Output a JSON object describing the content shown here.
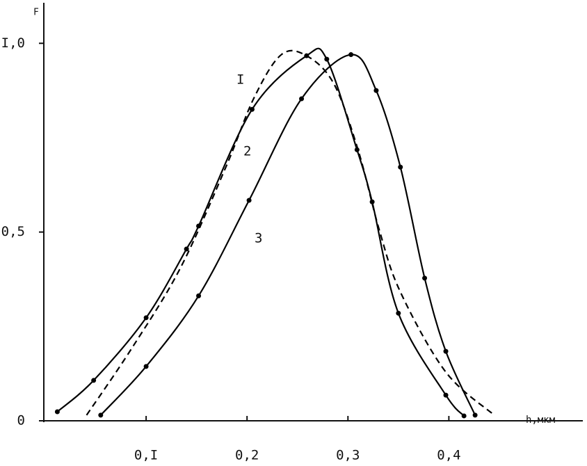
{
  "chart_data": {
    "type": "line",
    "y_label": "F",
    "x_label": "h,мкм",
    "xlim": [
      0,
      0.53
    ],
    "ylim": [
      0,
      1.1
    ],
    "xticks": [
      {
        "value": 0.1,
        "label": "0,I"
      },
      {
        "value": 0.2,
        "label": "0,2"
      },
      {
        "value": 0.3,
        "label": "0,3"
      },
      {
        "value": 0.4,
        "label": "0,4"
      }
    ],
    "yticks": [
      {
        "value": 0,
        "label": "0"
      },
      {
        "value": 0.5,
        "label": "0,5"
      },
      {
        "value": 1.0,
        "label": ".I,0"
      }
    ],
    "series": [
      {
        "name": "I",
        "color": "#000000",
        "dashed": true,
        "markers": false,
        "x": [
          0.041,
          0.086,
          0.134,
          0.179,
          0.207,
          0.234,
          0.259,
          0.286,
          0.31,
          0.331,
          0.352,
          0.397,
          0.445
        ],
        "values": [
          0.015,
          0.193,
          0.405,
          0.672,
          0.856,
          0.97,
          0.967,
          0.893,
          0.718,
          0.506,
          0.341,
          0.129,
          0.015
        ]
      },
      {
        "name": "2",
        "color": "#000000",
        "dashed": false,
        "markers": true,
        "x": [
          0.012,
          0.048,
          0.1,
          0.14,
          0.152,
          0.205,
          0.259,
          0.279,
          0.309,
          0.324,
          0.35,
          0.397,
          0.415
        ],
        "values": [
          0.024,
          0.107,
          0.273,
          0.455,
          0.516,
          0.825,
          0.967,
          0.958,
          0.718,
          0.58,
          0.285,
          0.068,
          0.013
        ]
      },
      {
        "name": "3",
        "color": "#000000",
        "dashed": false,
        "markers": true,
        "x": [
          0.055,
          0.1,
          0.152,
          0.202,
          0.254,
          0.303,
          0.328,
          0.352,
          0.376,
          0.397,
          0.426
        ],
        "values": [
          0.015,
          0.144,
          0.331,
          0.584,
          0.853,
          0.97,
          0.875,
          0.672,
          0.378,
          0.184,
          0.015
        ]
      }
    ]
  }
}
